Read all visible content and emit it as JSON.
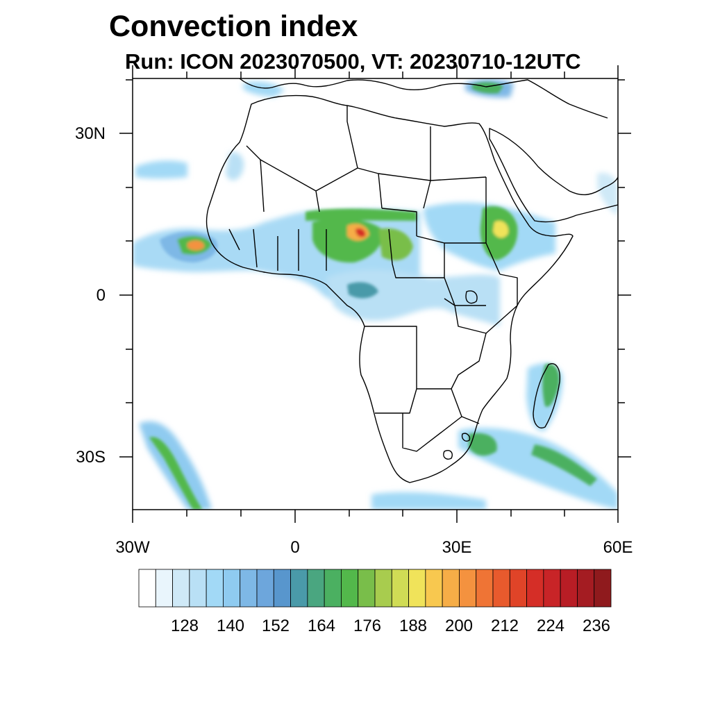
{
  "title": "Convection index",
  "subtitle": "Run: ICON 2023070500,  VT: 20230710-12UTC",
  "lat_labels": [
    "30N",
    "0",
    "30S"
  ],
  "lon_labels": [
    "30W",
    "0",
    "30E",
    "60E"
  ],
  "colorbar": {
    "tick_labels": [
      "128",
      "140",
      "152",
      "164",
      "176",
      "188",
      "200",
      "212",
      "224",
      "236"
    ],
    "colors": [
      "#ffffff",
      "#e9f5fc",
      "#cfe9f7",
      "#b9e0f5",
      "#a2d9f6",
      "#8fcbf0",
      "#7eb8e6",
      "#6da6dc",
      "#5896cd",
      "#4a9aa9",
      "#4aa680",
      "#4bb061",
      "#53b84b",
      "#79be4a",
      "#a8cc4e",
      "#d0dc55",
      "#f0e35a",
      "#f8c84f",
      "#f6ad47",
      "#f4923f",
      "#ef7435",
      "#e85a2d",
      "#e04428",
      "#d52e27",
      "#c82427",
      "#b81d25",
      "#a41c22",
      "#8f1a1d"
    ]
  },
  "map": {
    "lon_range": [
      -30,
      60
    ],
    "lat_range": [
      -40,
      40
    ],
    "lat_ticks": [
      30,
      0,
      -30
    ],
    "lon_ticks": [
      -30,
      0,
      30,
      60
    ]
  }
}
